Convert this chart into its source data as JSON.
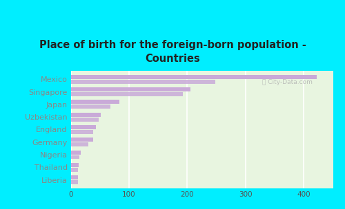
{
  "title": "Place of birth for the foreign-born population -\nCountries",
  "categories": [
    "Mexico",
    "Singapore",
    "Japan",
    "Uzbekistan",
    "England",
    "Germany",
    "Nigeria",
    "Thailand",
    "Liberia"
  ],
  "values1": [
    422,
    205,
    83,
    52,
    43,
    38,
    17,
    14,
    13
  ],
  "values2": [
    248,
    193,
    68,
    48,
    38,
    30,
    15,
    12,
    12
  ],
  "bar_color1": "#c9aad8",
  "bar_color2": "#c9aad8",
  "bg_cyan": "#00eeff",
  "bg_chart_top": "#e8f5e0",
  "bg_chart_bottom": "#d8f0d0",
  "title_color": "#222222",
  "label_color": "#888888",
  "grid_color": "#ffffff",
  "xlim": [
    0,
    450
  ],
  "xticks": [
    0,
    100,
    200,
    300,
    400
  ]
}
